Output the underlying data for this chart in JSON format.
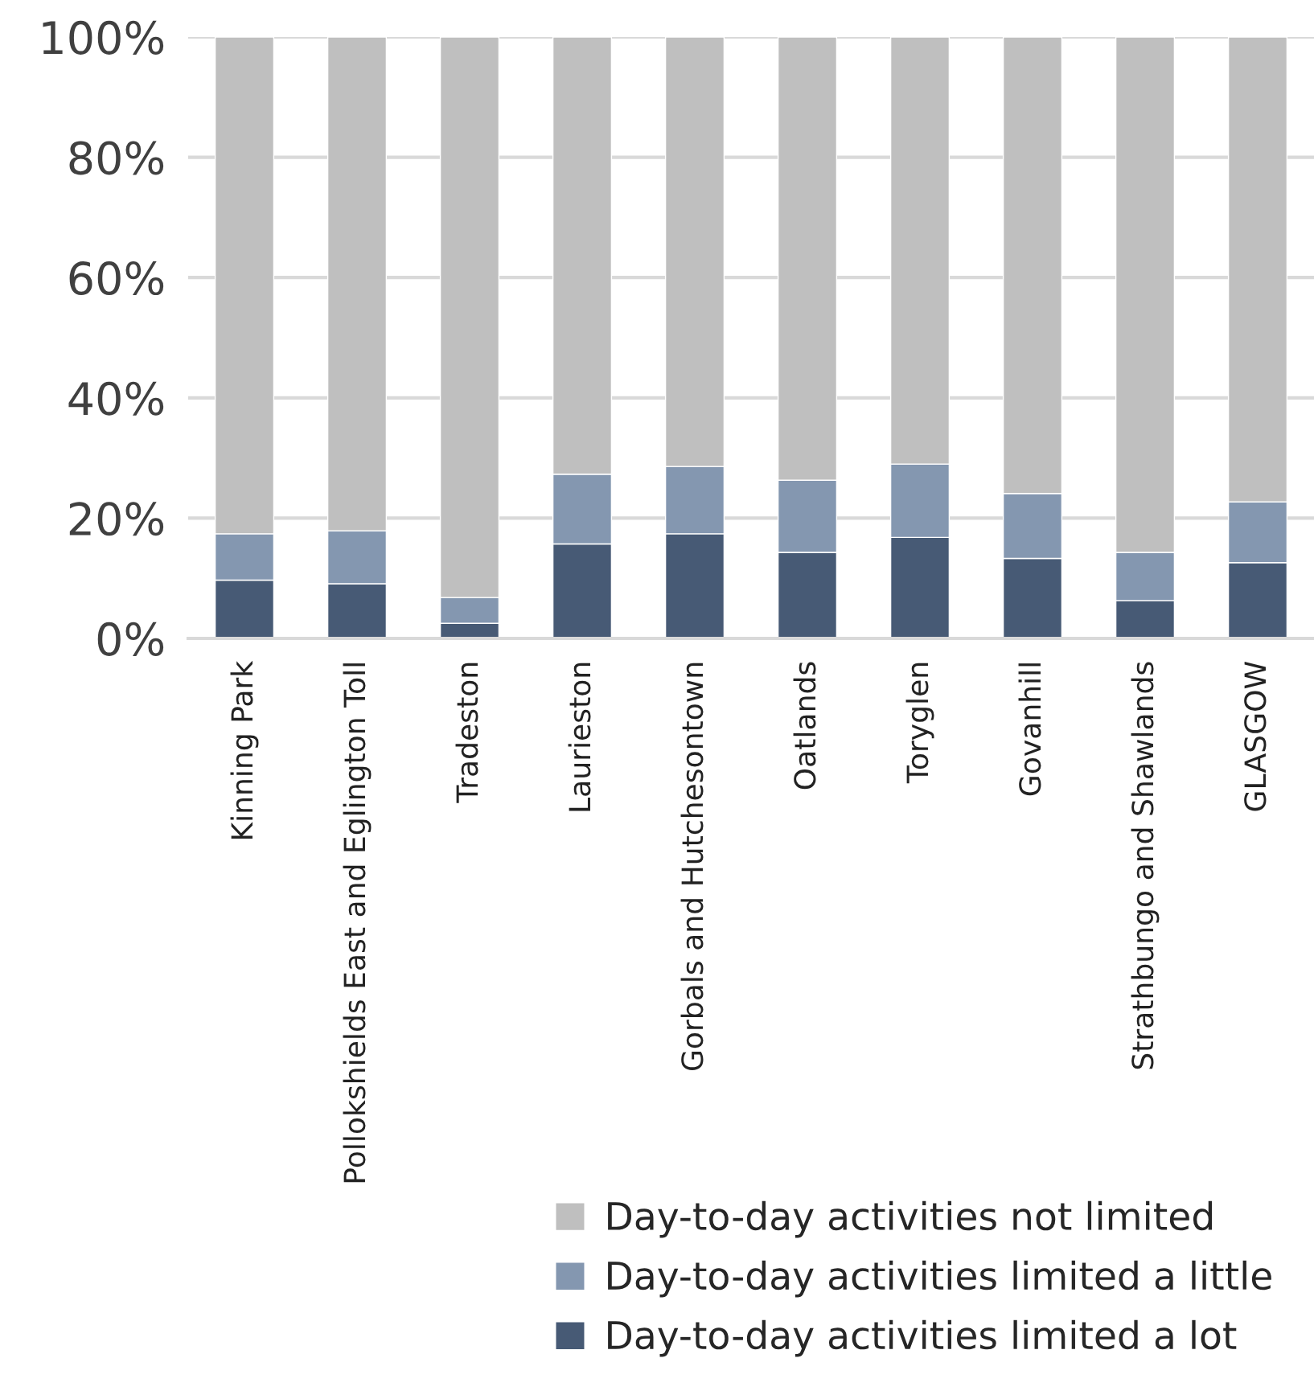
{
  "chart_data": {
    "type": "bar",
    "stacked": true,
    "categories": [
      "Kinning Park",
      "Pollokshields East and Eglington Toll",
      "Tradeston",
      "Laurieston",
      "Gorbals and Hutchesontown",
      "Oatlands",
      "Toryglen",
      "Govanhill",
      "Strathbungo and Shawlands",
      "GLASGOW"
    ],
    "series": [
      {
        "name": "Day-to-day activities limited a lot",
        "color": "#475a75",
        "values": [
          9.7,
          9.1,
          2.5,
          15.7,
          17.4,
          14.3,
          16.8,
          13.3,
          6.3,
          12.6
        ]
      },
      {
        "name": "Day-to-day activities limited a little",
        "color": "#8497b0",
        "values": [
          7.7,
          8.8,
          4.3,
          11.6,
          11.2,
          12.0,
          12.2,
          10.8,
          8.0,
          10.1
        ]
      },
      {
        "name": "Day-to-day activities not limited",
        "color": "#bfbfbf",
        "values": [
          82.6,
          82.1,
          93.2,
          72.7,
          71.4,
          73.7,
          71.0,
          75.9,
          85.7,
          77.3
        ]
      }
    ],
    "ylim": [
      0,
      100
    ],
    "yticks": [
      {
        "value": 0,
        "label": "0%"
      },
      {
        "value": 20,
        "label": "20%"
      },
      {
        "value": 40,
        "label": "40%"
      },
      {
        "value": 60,
        "label": "60%"
      },
      {
        "value": 80,
        "label": "80%"
      },
      {
        "value": 100,
        "label": "100%"
      }
    ],
    "grid": "y",
    "legend": "bottom right"
  }
}
